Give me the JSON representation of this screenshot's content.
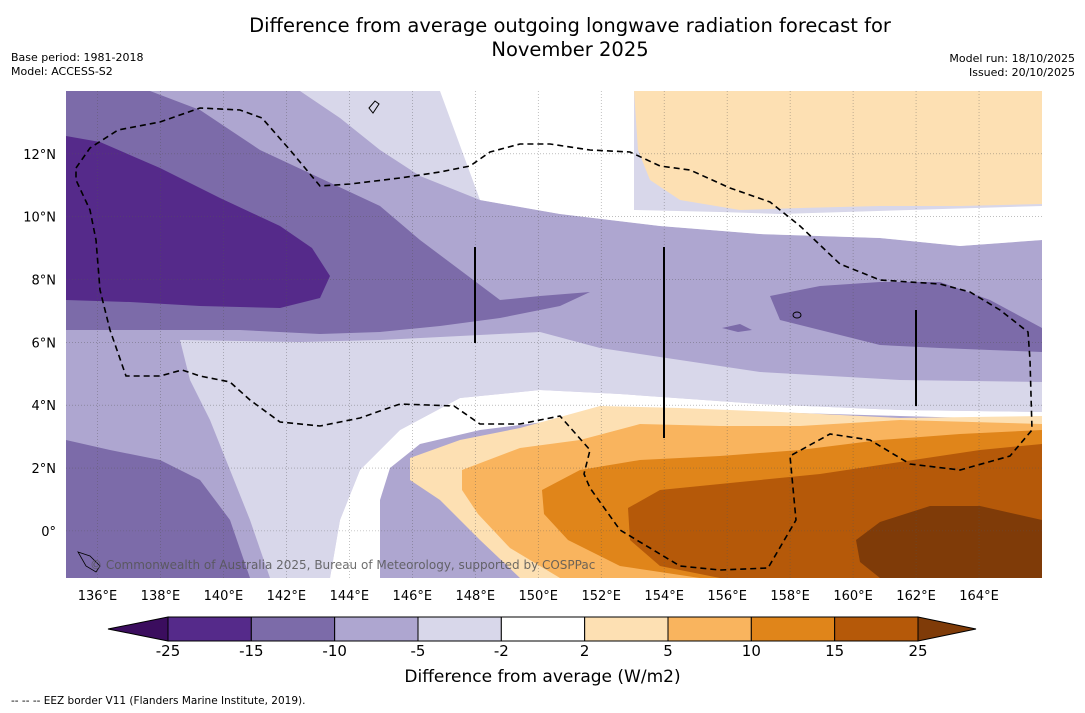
{
  "title_line1": "Difference from average outgoing longwave radiation forecast for",
  "title_line2": "November 2025",
  "meta_left": {
    "base_period": "Base period: 1981-2018",
    "model": "Model: ACCESS-S2"
  },
  "meta_right": {
    "model_run": "Model run: 18/10/2025",
    "issued": "Issued: 20/10/2025"
  },
  "copyright": "© Commonwealth of Australia 2025, Bureau of Meteorology, supported by COSPPac",
  "footnote": "-- -- -- EEZ border V11 (Flanders Marine Institute, 2019).",
  "map": {
    "lon_range": [
      135,
      166
    ],
    "lat_range": [
      -1.5,
      14
    ],
    "x_ticks": [
      "136°E",
      "138°E",
      "140°E",
      "142°E",
      "144°E",
      "146°E",
      "148°E",
      "150°E",
      "152°E",
      "154°E",
      "156°E",
      "158°E",
      "160°E",
      "162°E",
      "164°E"
    ],
    "x_tick_values": [
      136,
      138,
      140,
      142,
      144,
      146,
      148,
      150,
      152,
      154,
      156,
      158,
      160,
      162,
      164
    ],
    "y_ticks": [
      "0°",
      "2°N",
      "4°N",
      "6°N",
      "8°N",
      "10°N",
      "12°N"
    ],
    "y_tick_values": [
      0,
      2,
      4,
      6,
      8,
      10,
      12
    ]
  },
  "colorbar": {
    "title": "Difference from average (W/m2)",
    "labels": [
      "-25",
      "-15",
      "-10",
      "-5",
      "-2",
      "2",
      "5",
      "10",
      "15",
      "25"
    ],
    "colors": [
      "#552a8a",
      "#7c6ba9",
      "#aea6d0",
      "#d8d7ea",
      "#ffffff",
      "#fde0b3",
      "#f9b45e",
      "#e0851a",
      "#b55909"
    ],
    "extend_low_color": "#3b0d5e",
    "extend_high_color": "#7f3b08"
  }
}
